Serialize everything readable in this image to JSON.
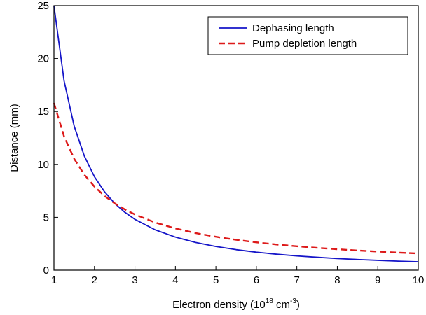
{
  "chart_data": {
    "type": "line",
    "xlabel": "Electron density (10",
    "xlabel_sup1": "18",
    "xlabel_mid": " cm",
    "xlabel_sup2": "-3",
    "xlabel_end": ")",
    "ylabel": "Distance (mm)",
    "xlim": [
      1,
      10
    ],
    "ylim": [
      0,
      25
    ],
    "x_ticks": [
      "1",
      "2",
      "3",
      "4",
      "5",
      "6",
      "7",
      "8",
      "9",
      "10"
    ],
    "y_ticks": [
      "0",
      "5",
      "10",
      "15",
      "20",
      "25"
    ],
    "grid": false,
    "legend_position": "top-right",
    "x": [
      1,
      1.25,
      1.5,
      1.75,
      2,
      2.25,
      2.5,
      2.75,
      3,
      3.5,
      4,
      4.5,
      5,
      5.5,
      6,
      6.5,
      7,
      7.5,
      8,
      8.5,
      9,
      9.5,
      10
    ],
    "series": [
      {
        "name": "Dephasing length",
        "color": "#1515c8",
        "dash": "solid",
        "values": [
          25.0,
          17.89,
          13.61,
          10.8,
          8.84,
          7.41,
          6.32,
          5.48,
          4.81,
          3.82,
          3.13,
          2.62,
          2.24,
          1.94,
          1.7,
          1.51,
          1.35,
          1.22,
          1.1,
          1.01,
          0.93,
          0.85,
          0.79
        ]
      },
      {
        "name": "Pump depletion length",
        "color": "#dd1a1a",
        "dash": "dashed",
        "values": [
          15.8,
          12.64,
          10.53,
          9.03,
          7.9,
          7.02,
          6.32,
          5.75,
          5.27,
          4.51,
          3.95,
          3.51,
          3.16,
          2.87,
          2.63,
          2.43,
          2.26,
          2.11,
          1.98,
          1.86,
          1.76,
          1.66,
          1.58
        ]
      }
    ]
  }
}
